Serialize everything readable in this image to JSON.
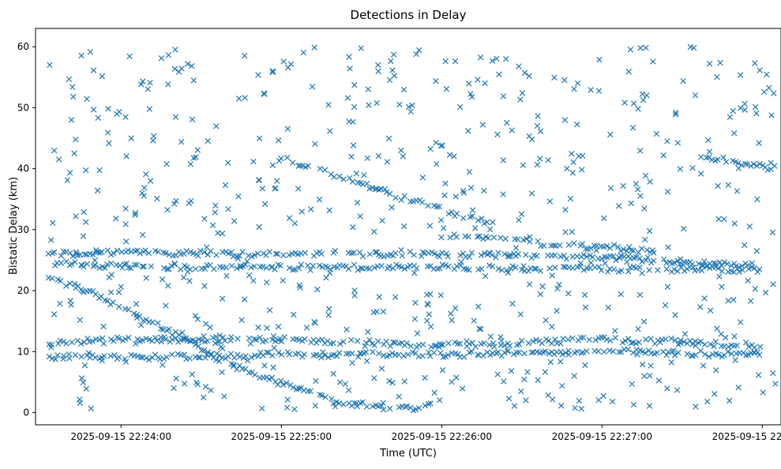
{
  "chart_data": {
    "type": "scatter",
    "title": "Detections in Delay",
    "xlabel": "Time (UTC)",
    "ylabel": "Bistatic Delay (km)",
    "x_unit": "seconds from 22:24:00 UTC",
    "x_tick_labels": [
      "2025-09-15 22:24:00",
      "2025-09-15 22:25:00",
      "2025-09-15 22:26:00",
      "2025-09-15 22:27:00",
      "2025-09-15 22:28:00"
    ],
    "x_tick_values": [
      0,
      60,
      120,
      180,
      240
    ],
    "xlim": [
      -32,
      247
    ],
    "ylim": [
      -2,
      63
    ],
    "y_ticks": [
      0,
      10,
      20,
      30,
      40,
      50,
      60
    ],
    "marker": "x",
    "color": "#1f77b4",
    "grid": false,
    "legend": "none",
    "tracks": [
      {
        "desc": "diagonal track descending",
        "points": [
          [
            -27,
            22
          ],
          [
            -10,
            19.5
          ],
          [
            0,
            17.3
          ],
          [
            20,
            13
          ],
          [
            40,
            8
          ],
          [
            60,
            4.8
          ],
          [
            80,
            1.8
          ],
          [
            100,
            0.8
          ],
          [
            112,
            0.8
          ],
          [
            120,
            1.8
          ]
        ]
      },
      {
        "desc": "upper diagonal track",
        "points": [
          [
            60,
            42
          ],
          [
            80,
            39
          ],
          [
            100,
            36
          ],
          [
            120,
            33.3
          ],
          [
            140,
            30.8
          ]
        ]
      },
      {
        "desc": "steady track near 26 km",
        "points": [
          [
            -27,
            26
          ],
          [
            0,
            26.2
          ],
          [
            60,
            26
          ],
          [
            120,
            26
          ],
          [
            180,
            25.5
          ],
          [
            240,
            24
          ]
        ]
      },
      {
        "desc": "steady track near 24 km",
        "points": [
          [
            -27,
            24.5
          ],
          [
            0,
            24
          ],
          [
            60,
            23.8
          ],
          [
            120,
            23.8
          ],
          [
            180,
            23.5
          ],
          [
            240,
            23.5
          ]
        ]
      },
      {
        "desc": "steady track near 12 km",
        "points": [
          [
            -27,
            11.5
          ],
          [
            0,
            12
          ],
          [
            60,
            12
          ],
          [
            120,
            11
          ],
          [
            180,
            12
          ],
          [
            240,
            11
          ]
        ]
      },
      {
        "desc": "steady track near 9.5 km",
        "points": [
          [
            -27,
            9
          ],
          [
            0,
            9
          ],
          [
            60,
            9.5
          ],
          [
            120,
            9.5
          ],
          [
            180,
            10
          ],
          [
            240,
            9.5
          ]
        ]
      },
      {
        "desc": "track near 27.5 km",
        "points": [
          [
            120,
            29
          ],
          [
            150,
            28
          ],
          [
            180,
            27
          ],
          [
            200,
            26.5
          ]
        ]
      },
      {
        "desc": "late track descending",
        "points": [
          [
            218,
            42
          ],
          [
            232,
            41
          ],
          [
            245,
            40
          ]
        ]
      }
    ],
    "clutter_point_count": 650,
    "clutter_y_range": [
      0.5,
      60
    ]
  }
}
